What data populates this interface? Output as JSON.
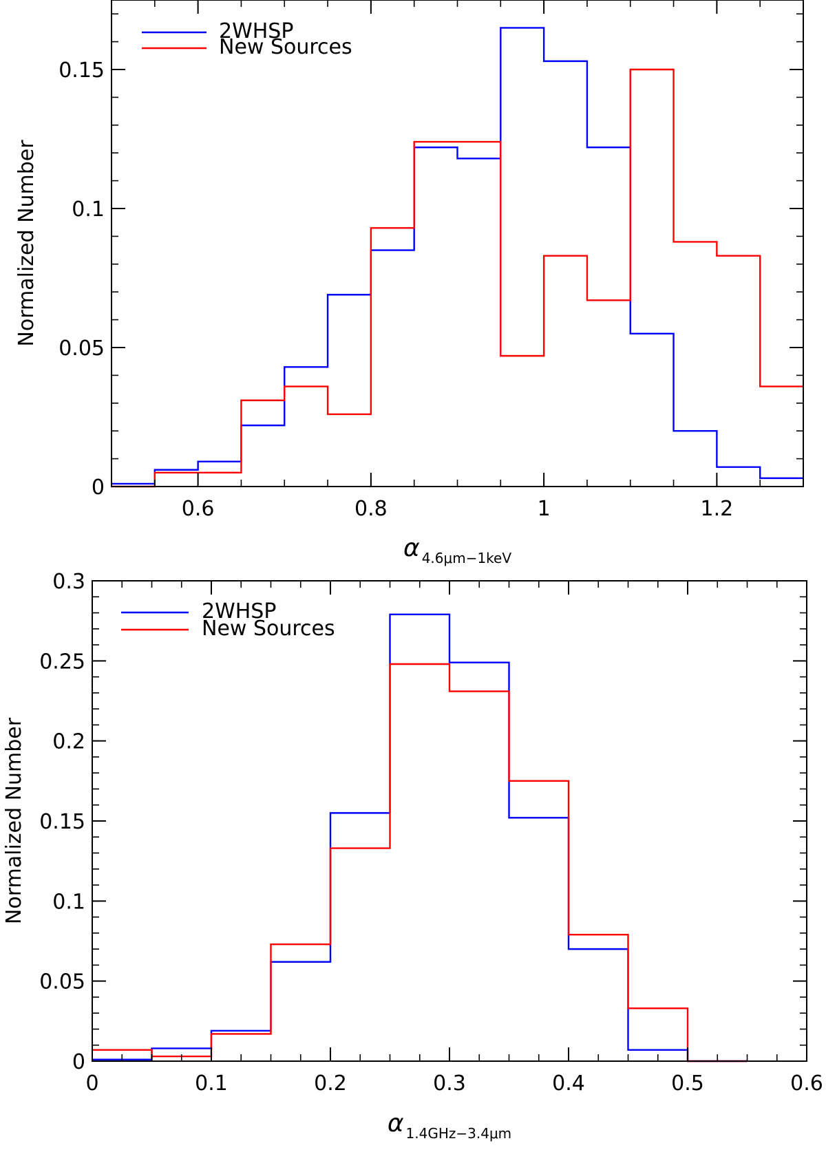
{
  "chart_data": [
    {
      "type": "histogram-step",
      "title": "",
      "xlabel": {
        "symbol": "α",
        "subscript": "4.6μm−1keV"
      },
      "ylabel": "Normalized Number",
      "xlim": [
        0.5,
        1.3
      ],
      "ylim": [
        0,
        0.175
      ],
      "xticks": [
        0.6,
        0.8,
        1.0,
        1.2
      ],
      "xtick_labels": [
        "0.6",
        "0.8",
        "1",
        "1.2"
      ],
      "yticks": [
        0,
        0.05,
        0.1,
        0.15
      ],
      "ytick_labels": [
        "0",
        "0.05",
        "0.1",
        "0.15"
      ],
      "legend": "top-left",
      "bin_edges": [
        0.5,
        0.55,
        0.6,
        0.65,
        0.7,
        0.75,
        0.8,
        0.85,
        0.9,
        0.95,
        1.0,
        1.05,
        1.1,
        1.15,
        1.2,
        1.25,
        1.3
      ],
      "series": [
        {
          "name": "2WHSP",
          "color": "#0000ff",
          "values": [
            0.001,
            0.006,
            0.009,
            0.022,
            0.043,
            0.069,
            0.085,
            0.122,
            0.118,
            0.165,
            0.153,
            0.122,
            0.055,
            0.02,
            0.007,
            0.003
          ]
        },
        {
          "name": "New Sources",
          "color": "#ff0000",
          "values": [
            0.0,
            0.005,
            0.005,
            0.031,
            0.036,
            0.026,
            0.093,
            0.124,
            0.124,
            0.047,
            0.083,
            0.067,
            0.15,
            0.088,
            0.083,
            0.036
          ]
        }
      ]
    },
    {
      "type": "histogram-step",
      "title": "",
      "xlabel": {
        "symbol": "α",
        "subscript": "1.4GHz−3.4μm"
      },
      "ylabel": "Normalized Number",
      "xlim": [
        0,
        0.6
      ],
      "ylim": [
        0,
        0.3
      ],
      "xticks": [
        0,
        0.1,
        0.2,
        0.3,
        0.4,
        0.5,
        0.6
      ],
      "xtick_labels": [
        "0",
        "0.1",
        "0.2",
        "0.3",
        "0.4",
        "0.5",
        "0.6"
      ],
      "yticks": [
        0,
        0.05,
        0.1,
        0.15,
        0.2,
        0.25,
        0.3
      ],
      "ytick_labels": [
        "0",
        "0.05",
        "0.1",
        "0.15",
        "0.2",
        "0.25",
        "0.3"
      ],
      "legend": "top-left",
      "bin_edges": [
        0,
        0.05,
        0.1,
        0.15,
        0.2,
        0.25,
        0.3,
        0.35,
        0.4,
        0.45,
        0.5,
        0.55
      ],
      "series": [
        {
          "name": "2WHSP",
          "color": "#0000ff",
          "values": [
            0.001,
            0.008,
            0.019,
            0.062,
            0.155,
            0.279,
            0.249,
            0.152,
            0.07,
            0.007,
            0.0
          ]
        },
        {
          "name": "New Sources",
          "color": "#ff0000",
          "values": [
            0.007,
            0.003,
            0.017,
            0.073,
            0.133,
            0.248,
            0.231,
            0.175,
            0.079,
            0.033,
            0.0
          ]
        }
      ]
    }
  ]
}
